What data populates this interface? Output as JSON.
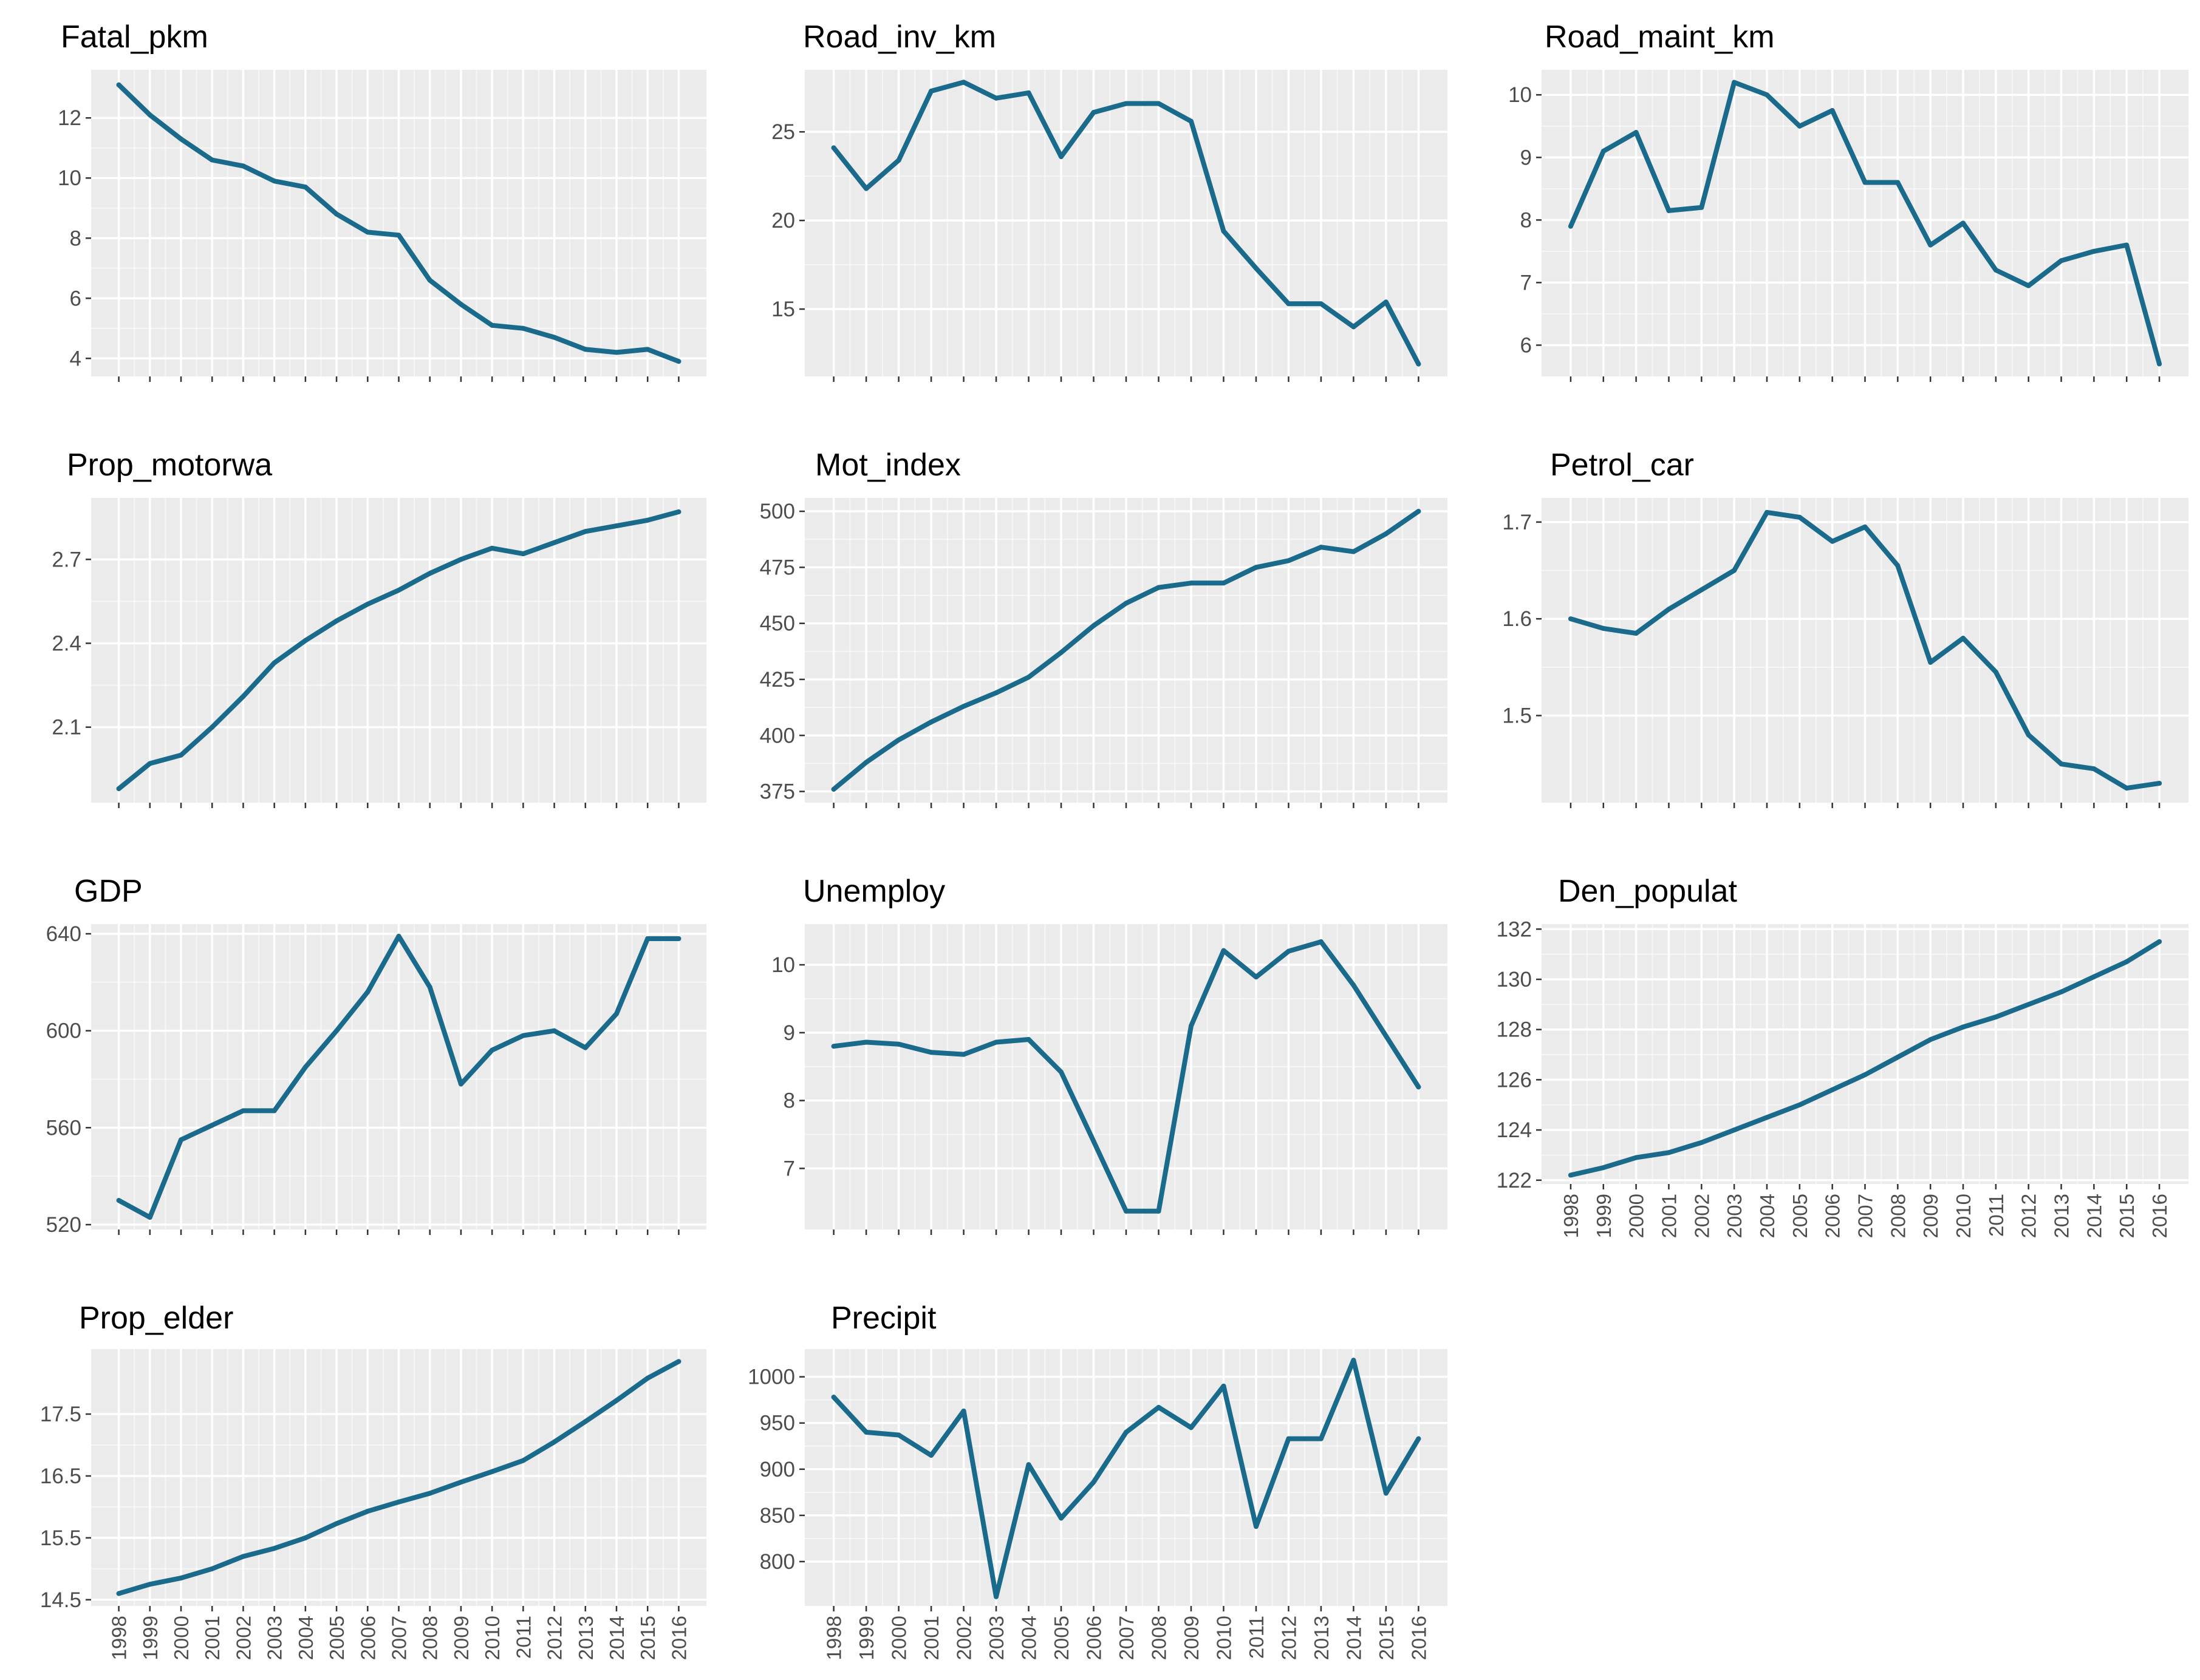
{
  "colors": {
    "line": "#1a6a8c",
    "panel": "#ebebeb",
    "grid_major": "#ffffff",
    "tick_text": "#4d4d4d",
    "title": "#000000"
  },
  "chart_data": [
    {
      "type": "line",
      "title": "Fatal_pkm",
      "x": [
        1998,
        1999,
        2000,
        2001,
        2002,
        2003,
        2004,
        2005,
        2006,
        2007,
        2008,
        2009,
        2010,
        2011,
        2012,
        2013,
        2014,
        2015,
        2016
      ],
      "y": [
        13.1,
        12.1,
        11.3,
        10.6,
        10.4,
        9.9,
        9.7,
        8.8,
        8.2,
        8.1,
        6.6,
        5.8,
        5.1,
        5.0,
        4.7,
        4.3,
        4.2,
        4.3,
        3.9
      ],
      "yticks": [
        4,
        6,
        8,
        10,
        12
      ],
      "ytick_labels": [
        "4",
        "6",
        "8",
        "10",
        "12"
      ],
      "ylim": [
        3.4,
        13.6
      ],
      "show_xtick_labels": false
    },
    {
      "type": "line",
      "title": "Road_inv_km",
      "x": [
        1998,
        1999,
        2000,
        2001,
        2002,
        2003,
        2004,
        2005,
        2006,
        2007,
        2008,
        2009,
        2010,
        2011,
        2012,
        2013,
        2014,
        2015,
        2016
      ],
      "y": [
        24.1,
        21.8,
        23.4,
        27.3,
        27.8,
        26.9,
        27.2,
        23.6,
        26.1,
        26.6,
        26.6,
        25.6,
        19.4,
        17.3,
        15.3,
        15.3,
        14.0,
        15.4,
        11.9
      ],
      "yticks": [
        15,
        20,
        25
      ],
      "ytick_labels": [
        "15",
        "20",
        "25"
      ],
      "ylim": [
        11.2,
        28.5
      ],
      "show_xtick_labels": false
    },
    {
      "type": "line",
      "title": "Road_maint_km",
      "x": [
        1998,
        1999,
        2000,
        2001,
        2002,
        2003,
        2004,
        2005,
        2006,
        2007,
        2008,
        2009,
        2010,
        2011,
        2012,
        2013,
        2014,
        2015,
        2016
      ],
      "y": [
        7.9,
        9.1,
        9.4,
        8.15,
        8.2,
        10.2,
        10.0,
        9.5,
        9.75,
        8.6,
        8.6,
        7.6,
        7.95,
        7.2,
        6.95,
        7.35,
        7.5,
        7.6,
        5.7
      ],
      "yticks": [
        6,
        7,
        8,
        9,
        10
      ],
      "ytick_labels": [
        "6",
        "7",
        "8",
        "9",
        "10"
      ],
      "ylim": [
        5.5,
        10.4
      ],
      "show_xtick_labels": false
    },
    {
      "type": "line",
      "title": "Prop_motorwa",
      "x": [
        1998,
        1999,
        2000,
        2001,
        2002,
        2003,
        2004,
        2005,
        2006,
        2007,
        2008,
        2009,
        2010,
        2011,
        2012,
        2013,
        2014,
        2015,
        2016
      ],
      "y": [
        1.88,
        1.97,
        2.0,
        2.1,
        2.21,
        2.33,
        2.41,
        2.48,
        2.54,
        2.59,
        2.65,
        2.7,
        2.74,
        2.72,
        2.76,
        2.8,
        2.82,
        2.84,
        2.87
      ],
      "yticks": [
        2.1,
        2.4,
        2.7
      ],
      "ytick_labels": [
        "2.1",
        "2.4",
        "2.7"
      ],
      "ylim": [
        1.83,
        2.92
      ],
      "show_xtick_labels": false
    },
    {
      "type": "line",
      "title": "Mot_index",
      "x": [
        1998,
        1999,
        2000,
        2001,
        2002,
        2003,
        2004,
        2005,
        2006,
        2007,
        2008,
        2009,
        2010,
        2011,
        2012,
        2013,
        2014,
        2015,
        2016
      ],
      "y": [
        376,
        388,
        398,
        406,
        413,
        419,
        426,
        437,
        449,
        459,
        466,
        468,
        468,
        475,
        478,
        484,
        482,
        490,
        500
      ],
      "yticks": [
        375,
        400,
        425,
        450,
        475,
        500
      ],
      "ytick_labels": [
        "375",
        "400",
        "425",
        "450",
        "475",
        "500"
      ],
      "ylim": [
        370,
        506
      ],
      "show_xtick_labels": false
    },
    {
      "type": "line",
      "title": "Petrol_car",
      "x": [
        1998,
        1999,
        2000,
        2001,
        2002,
        2003,
        2004,
        2005,
        2006,
        2007,
        2008,
        2009,
        2010,
        2011,
        2012,
        2013,
        2014,
        2015,
        2016
      ],
      "y": [
        1.6,
        1.59,
        1.585,
        1.61,
        1.63,
        1.65,
        1.71,
        1.705,
        1.68,
        1.695,
        1.655,
        1.555,
        1.58,
        1.545,
        1.48,
        1.45,
        1.445,
        1.425,
        1.43
      ],
      "yticks": [
        1.5,
        1.6,
        1.7
      ],
      "ytick_labels": [
        "1.5",
        "1.6",
        "1.7"
      ],
      "ylim": [
        1.41,
        1.725
      ],
      "show_xtick_labels": false
    },
    {
      "type": "line",
      "title": "GDP",
      "x": [
        1998,
        1999,
        2000,
        2001,
        2002,
        2003,
        2004,
        2005,
        2006,
        2007,
        2008,
        2009,
        2010,
        2011,
        2012,
        2013,
        2014,
        2015,
        2016
      ],
      "y": [
        530,
        523,
        555,
        561,
        567,
        567,
        585,
        600,
        616,
        639,
        618,
        578,
        592,
        598,
        600,
        593,
        607,
        638,
        638
      ],
      "yticks": [
        520,
        560,
        600,
        640
      ],
      "ytick_labels": [
        "520",
        "560",
        "600",
        "640"
      ],
      "ylim": [
        518,
        644
      ],
      "show_xtick_labels": false
    },
    {
      "type": "line",
      "title": "Unemploy",
      "x": [
        1998,
        1999,
        2000,
        2001,
        2002,
        2003,
        2004,
        2005,
        2006,
        2007,
        2008,
        2009,
        2010,
        2011,
        2012,
        2013,
        2014,
        2015,
        2016
      ],
      "y": [
        8.8,
        8.86,
        8.83,
        8.71,
        8.68,
        8.86,
        8.9,
        8.42,
        7.4,
        6.37,
        6.37,
        9.1,
        10.21,
        9.82,
        10.2,
        10.34,
        9.7,
        8.95,
        8.2
      ],
      "yticks": [
        7,
        8,
        9,
        10
      ],
      "ytick_labels": [
        "7",
        "8",
        "9",
        "10"
      ],
      "ylim": [
        6.1,
        10.6
      ],
      "show_xtick_labels": false
    },
    {
      "type": "line",
      "title": "Den_populat",
      "x": [
        1998,
        1999,
        2000,
        2001,
        2002,
        2003,
        2004,
        2005,
        2006,
        2007,
        2008,
        2009,
        2010,
        2011,
        2012,
        2013,
        2014,
        2015,
        2016
      ],
      "y": [
        122.2,
        122.5,
        122.9,
        123.1,
        123.5,
        124.0,
        124.5,
        125.0,
        125.6,
        126.2,
        126.9,
        127.6,
        128.1,
        128.5,
        129.0,
        129.5,
        130.1,
        130.7,
        131.5
      ],
      "yticks": [
        122,
        124,
        126,
        128,
        130,
        132
      ],
      "ytick_labels": [
        "122",
        "124",
        "126",
        "128",
        "130",
        "132"
      ],
      "ylim": [
        121.85,
        132.2
      ],
      "show_xtick_labels": true
    },
    {
      "type": "line",
      "title": "Prop_elder",
      "x": [
        1998,
        1999,
        2000,
        2001,
        2002,
        2003,
        2004,
        2005,
        2006,
        2007,
        2008,
        2009,
        2010,
        2011,
        2012,
        2013,
        2014,
        2015,
        2016
      ],
      "y": [
        14.6,
        14.75,
        14.85,
        15.0,
        15.2,
        15.33,
        15.5,
        15.73,
        15.93,
        16.08,
        16.22,
        16.4,
        16.57,
        16.75,
        17.05,
        17.38,
        17.72,
        18.08,
        18.35
      ],
      "yticks": [
        14.5,
        15.5,
        16.5,
        17.5
      ],
      "ytick_labels": [
        "14.5",
        "15.5",
        "16.5",
        "17.5"
      ],
      "ylim": [
        14.4,
        18.55
      ],
      "show_xtick_labels": true
    },
    {
      "type": "line",
      "title": "Precipit",
      "x": [
        1998,
        1999,
        2000,
        2001,
        2002,
        2003,
        2004,
        2005,
        2006,
        2007,
        2008,
        2009,
        2010,
        2011,
        2012,
        2013,
        2014,
        2015,
        2016
      ],
      "y": [
        978,
        940,
        937,
        915,
        963,
        762,
        905,
        847,
        886,
        940,
        967,
        945,
        990,
        838,
        933,
        933,
        1018,
        874,
        933
      ],
      "yticks": [
        800,
        850,
        900,
        950,
        1000
      ],
      "ytick_labels": [
        "800",
        "850",
        "900",
        "950",
        "1000"
      ],
      "ylim": [
        752,
        1030
      ],
      "show_xtick_labels": true
    }
  ]
}
